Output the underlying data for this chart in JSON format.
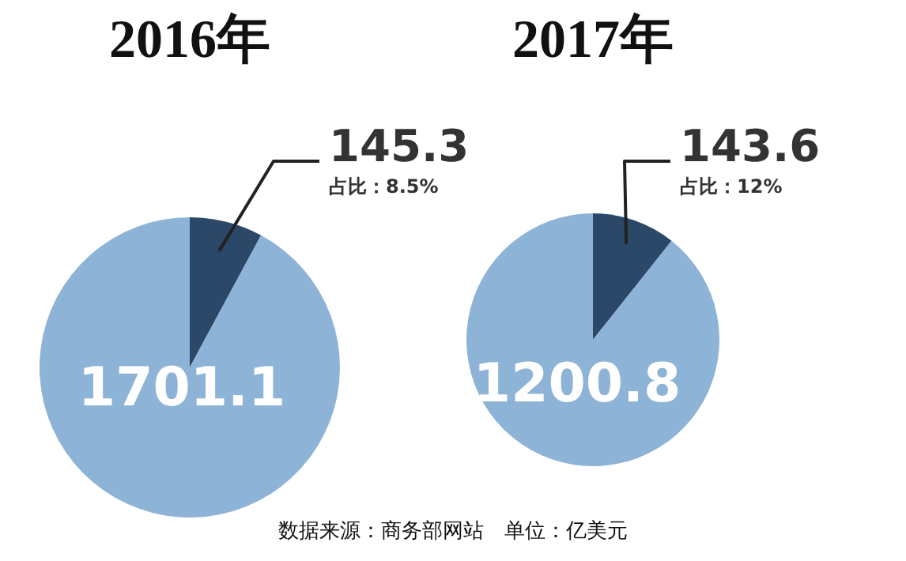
{
  "chart_data": [
    {
      "type": "pie",
      "title": "2016年",
      "categories": [
        null,
        null
      ],
      "values": [
        145.3,
        1701.1
      ],
      "colors": [
        "#2b4868",
        "#8db3d6"
      ],
      "data_labels": true,
      "annotations": [
        "占比：8.5%"
      ]
    },
    {
      "type": "pie",
      "title": "2017年",
      "categories": [
        null,
        null
      ],
      "values": [
        143.6,
        1200.8
      ],
      "colors": [
        "#2b4868",
        "#8db3d6"
      ],
      "data_labels": true,
      "annotations": [
        "占比：12%",
        "数据来源：商务部网站　单位：亿美元"
      ]
    }
  ]
}
